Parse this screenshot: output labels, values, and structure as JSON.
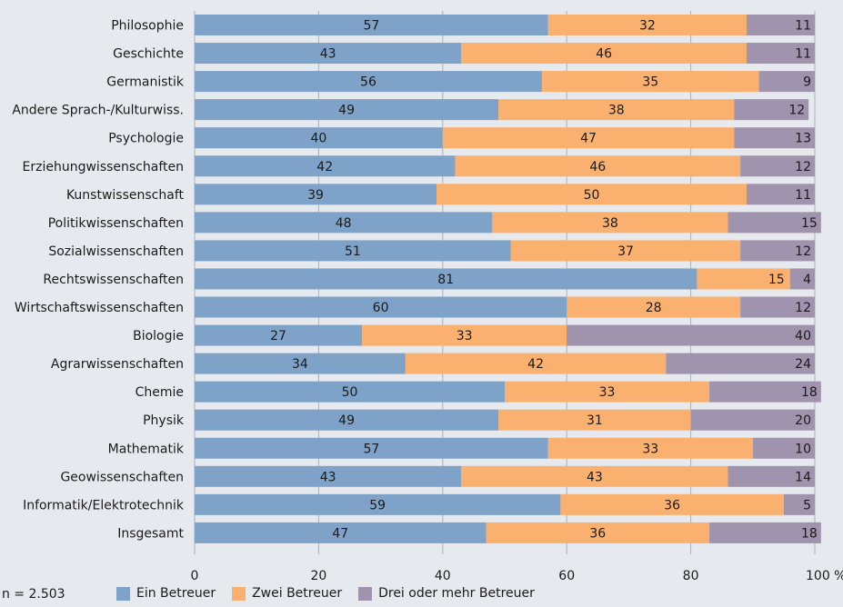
{
  "chart_data": {
    "type": "bar",
    "orientation": "horizontal",
    "stacked": true,
    "categories": [
      "Philosophie",
      "Geschichte",
      "Germanistik",
      "Andere Sprach-/Kulturwiss.",
      "Psychologie",
      "Erziehungwissenschaften",
      "Kunstwissenschaft",
      "Politikwissenschaften",
      "Sozialwissenschaften",
      "Rechtswissenschaften",
      "Wirtschaftswissenschaften",
      "Biologie",
      "Agrarwissenschaften",
      "Chemie",
      "Physik",
      "Mathematik",
      "Geowissenschaften",
      "Informatik/Elektrotechnik",
      "Insgesamt"
    ],
    "series": [
      {
        "name": "Ein Betreuer",
        "color": "#7fa3c8",
        "values": [
          57,
          43,
          56,
          49,
          40,
          42,
          39,
          48,
          51,
          81,
          60,
          27,
          34,
          50,
          49,
          57,
          43,
          59,
          47
        ]
      },
      {
        "name": "Zwei Betreuer",
        "color": "#fab06f",
        "values": [
          32,
          46,
          35,
          38,
          47,
          46,
          50,
          38,
          37,
          15,
          28,
          33,
          42,
          33,
          31,
          33,
          43,
          36,
          36
        ]
      },
      {
        "name": "Drei oder mehr Betreuer",
        "color": "#a093ad",
        "values": [
          11,
          11,
          9,
          12,
          13,
          12,
          11,
          15,
          12,
          4,
          12,
          40,
          24,
          18,
          20,
          10,
          14,
          5,
          18
        ]
      }
    ],
    "xlim": [
      0,
      100
    ],
    "xticks": [
      0,
      20,
      40,
      60,
      80,
      100
    ],
    "x_unit": "%",
    "grid": true,
    "legend_position": "bottom"
  },
  "note": "n = 2.503"
}
